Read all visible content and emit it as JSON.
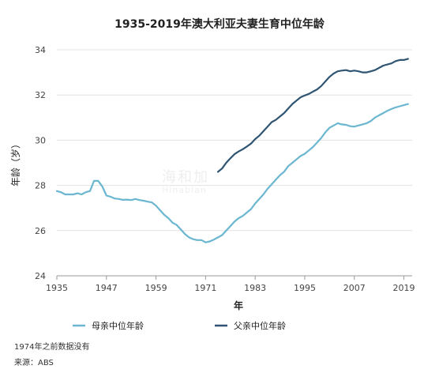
{
  "chart_data": {
    "type": "line",
    "title": "1935-2019年澳大利亚夫妻生育中位年龄",
    "xlabel": "年",
    "ylabel": "年龄（岁）",
    "xlim": [
      1935,
      2021
    ],
    "ylim": [
      24,
      34
    ],
    "x_ticks": [
      1935,
      1947,
      1959,
      1971,
      1983,
      1995,
      2007,
      2019
    ],
    "y_ticks": [
      24,
      26,
      28,
      30,
      32,
      34
    ],
    "grid": true,
    "legend_position": "bottom",
    "colors": {
      "mother": "#6bb6d0",
      "father": "#2f5573",
      "grid": "#e3e3e3"
    },
    "series": [
      {
        "name": "母亲中位年龄",
        "color": "#6bb6d0",
        "points": [
          [
            1935,
            27.75
          ],
          [
            1936,
            27.7
          ],
          [
            1937,
            27.6
          ],
          [
            1938,
            27.6
          ],
          [
            1939,
            27.6
          ],
          [
            1940,
            27.65
          ],
          [
            1941,
            27.6
          ],
          [
            1942,
            27.7
          ],
          [
            1943,
            27.75
          ],
          [
            1944,
            28.2
          ],
          [
            1945,
            28.2
          ],
          [
            1946,
            27.95
          ],
          [
            1947,
            27.55
          ],
          [
            1948,
            27.5
          ],
          [
            1949,
            27.42
          ],
          [
            1950,
            27.4
          ],
          [
            1951,
            27.36
          ],
          [
            1952,
            27.37
          ],
          [
            1953,
            27.35
          ],
          [
            1954,
            27.4
          ],
          [
            1955,
            27.35
          ],
          [
            1956,
            27.32
          ],
          [
            1957,
            27.28
          ],
          [
            1958,
            27.25
          ],
          [
            1959,
            27.1
          ],
          [
            1960,
            26.9
          ],
          [
            1961,
            26.7
          ],
          [
            1962,
            26.55
          ],
          [
            1963,
            26.35
          ],
          [
            1964,
            26.25
          ],
          [
            1965,
            26.05
          ],
          [
            1966,
            25.85
          ],
          [
            1967,
            25.7
          ],
          [
            1968,
            25.62
          ],
          [
            1969,
            25.58
          ],
          [
            1970,
            25.58
          ],
          [
            1971,
            25.48
          ],
          [
            1972,
            25.52
          ],
          [
            1973,
            25.6
          ],
          [
            1974,
            25.7
          ],
          [
            1975,
            25.8
          ],
          [
            1976,
            26.0
          ],
          [
            1977,
            26.2
          ],
          [
            1978,
            26.4
          ],
          [
            1979,
            26.55
          ],
          [
            1980,
            26.65
          ],
          [
            1981,
            26.8
          ],
          [
            1982,
            26.95
          ],
          [
            1983,
            27.2
          ],
          [
            1984,
            27.4
          ],
          [
            1985,
            27.6
          ],
          [
            1986,
            27.85
          ],
          [
            1987,
            28.05
          ],
          [
            1988,
            28.25
          ],
          [
            1989,
            28.45
          ],
          [
            1990,
            28.6
          ],
          [
            1991,
            28.85
          ],
          [
            1992,
            29.0
          ],
          [
            1993,
            29.15
          ],
          [
            1994,
            29.3
          ],
          [
            1995,
            29.4
          ],
          [
            1996,
            29.55
          ],
          [
            1997,
            29.7
          ],
          [
            1998,
            29.9
          ],
          [
            1999,
            30.1
          ],
          [
            2000,
            30.35
          ],
          [
            2001,
            30.55
          ],
          [
            2002,
            30.65
          ],
          [
            2003,
            30.75
          ],
          [
            2004,
            30.7
          ],
          [
            2005,
            30.68
          ],
          [
            2006,
            30.62
          ],
          [
            2007,
            30.6
          ],
          [
            2008,
            30.65
          ],
          [
            2009,
            30.7
          ],
          [
            2010,
            30.75
          ],
          [
            2011,
            30.85
          ],
          [
            2012,
            31.0
          ],
          [
            2013,
            31.1
          ],
          [
            2014,
            31.2
          ],
          [
            2015,
            31.3
          ],
          [
            2016,
            31.38
          ],
          [
            2017,
            31.45
          ],
          [
            2018,
            31.5
          ],
          [
            2019,
            31.55
          ],
          [
            2020,
            31.6
          ]
        ]
      },
      {
        "name": "父亲中位年龄",
        "color": "#2f5573",
        "points": [
          [
            1974,
            28.6
          ],
          [
            1975,
            28.75
          ],
          [
            1976,
            29.0
          ],
          [
            1977,
            29.2
          ],
          [
            1978,
            29.38
          ],
          [
            1979,
            29.5
          ],
          [
            1980,
            29.6
          ],
          [
            1981,
            29.72
          ],
          [
            1982,
            29.85
          ],
          [
            1983,
            30.05
          ],
          [
            1984,
            30.2
          ],
          [
            1985,
            30.4
          ],
          [
            1986,
            30.6
          ],
          [
            1987,
            30.8
          ],
          [
            1988,
            30.9
          ],
          [
            1989,
            31.05
          ],
          [
            1990,
            31.2
          ],
          [
            1991,
            31.4
          ],
          [
            1992,
            31.6
          ],
          [
            1993,
            31.75
          ],
          [
            1994,
            31.9
          ],
          [
            1995,
            31.98
          ],
          [
            1996,
            32.05
          ],
          [
            1997,
            32.15
          ],
          [
            1998,
            32.25
          ],
          [
            1999,
            32.4
          ],
          [
            2000,
            32.6
          ],
          [
            2001,
            32.8
          ],
          [
            2002,
            32.95
          ],
          [
            2003,
            33.05
          ],
          [
            2004,
            33.08
          ],
          [
            2005,
            33.1
          ],
          [
            2006,
            33.05
          ],
          [
            2007,
            33.08
          ],
          [
            2008,
            33.05
          ],
          [
            2009,
            33.0
          ],
          [
            2010,
            33.0
          ],
          [
            2011,
            33.05
          ],
          [
            2012,
            33.1
          ],
          [
            2013,
            33.2
          ],
          [
            2014,
            33.3
          ],
          [
            2015,
            33.35
          ],
          [
            2016,
            33.4
          ],
          [
            2017,
            33.5
          ],
          [
            2018,
            33.55
          ],
          [
            2019,
            33.55
          ],
          [
            2020,
            33.6
          ]
        ]
      }
    ]
  },
  "notes": {
    "note1": "1974年之前数据没有",
    "note2": "来源：ABS"
  },
  "watermark": {
    "line1": "海和加",
    "line2": "Hinabian"
  }
}
